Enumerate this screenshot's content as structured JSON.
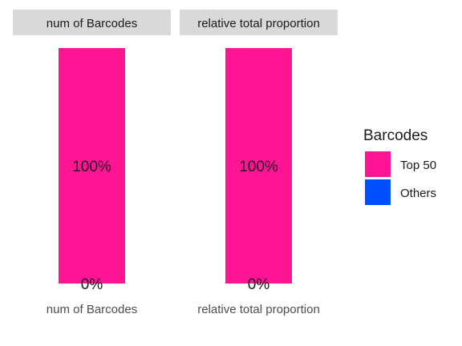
{
  "chart_data": {
    "type": "bar",
    "stacked": true,
    "percent": true,
    "ylim": [
      0,
      1
    ],
    "grid": false,
    "legend_position": "right",
    "legend": {
      "title": "Barcodes",
      "entries": [
        {
          "name": "Top 50",
          "color": "#FF1493"
        },
        {
          "name": "Others",
          "color": "#0050FF"
        }
      ]
    },
    "panels": [
      {
        "strip": "num of Barcodes",
        "category": "num of Barcodes",
        "series": [
          {
            "name": "Top 50",
            "value": 1.0,
            "label": "100%"
          },
          {
            "name": "Others",
            "value": 0.0,
            "label": "0%"
          }
        ]
      },
      {
        "strip": "relative total proportion",
        "category": "relative total proportion",
        "series": [
          {
            "name": "Top 50",
            "value": 1.0,
            "label": "100%"
          },
          {
            "name": "Others",
            "value": 0.0,
            "label": "0%"
          }
        ]
      }
    ]
  }
}
